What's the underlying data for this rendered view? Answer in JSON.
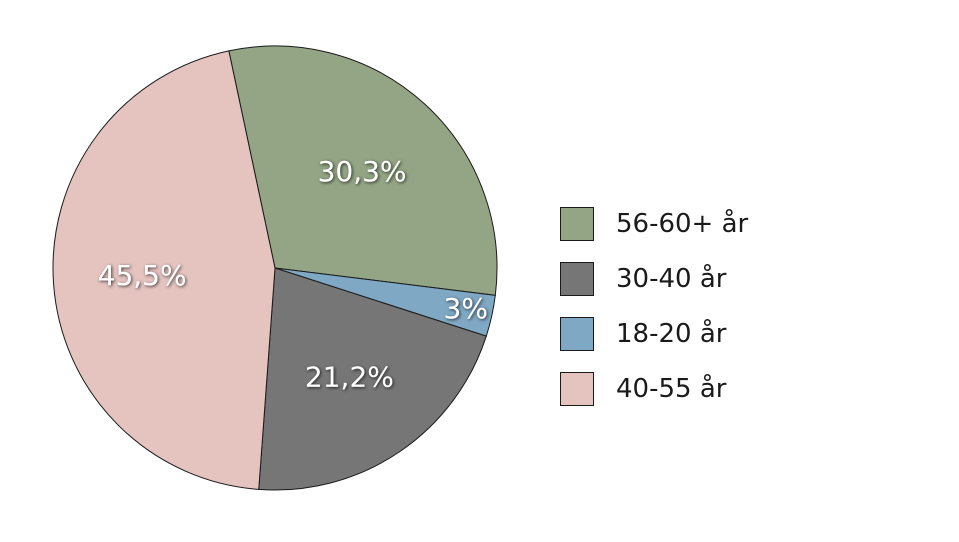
{
  "chart_data": {
    "type": "pie",
    "slices": [
      {
        "label": "56-60+ år",
        "value": 30.3,
        "display": "30,3%",
        "color": "#93a584"
      },
      {
        "label": "18-20 år",
        "value": 3,
        "display": "3%",
        "color": "#7fa8c4"
      },
      {
        "label": "30-40 år",
        "value": 21.2,
        "display": "21,2%",
        "color": "#767676"
      },
      {
        "label": "40-55 år",
        "value": 45.5,
        "display": "45,5%",
        "color": "#e5c4c0"
      }
    ],
    "legend": {
      "placement": "right",
      "order": [
        "56-60+ år",
        "30-40 år",
        "18-20 år",
        "40-55 år"
      ]
    }
  }
}
